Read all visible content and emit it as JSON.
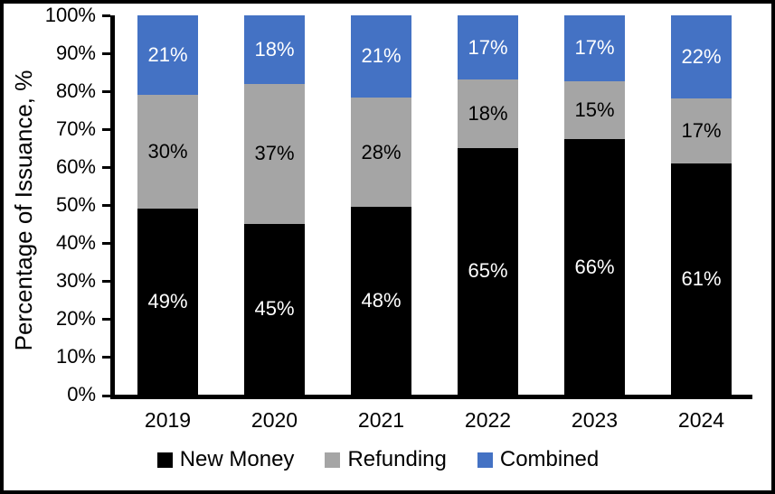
{
  "chart_data": {
    "type": "bar",
    "variant": "stacked-column-100",
    "title": "",
    "ylabel": "Percentage of Issuance, %",
    "xlabel": "",
    "ylim": [
      0,
      100
    ],
    "yticks": [
      "0%",
      "10%",
      "20%",
      "30%",
      "40%",
      "50%",
      "60%",
      "70%",
      "80%",
      "90%",
      "100%"
    ],
    "categories": [
      "2019",
      "2020",
      "2021",
      "2022",
      "2023",
      "2024"
    ],
    "series": [
      {
        "name": "New Money",
        "color": "#000000",
        "label_color": "#FFFFFF",
        "values": [
          49,
          45,
          48,
          65,
          66,
          61
        ]
      },
      {
        "name": "Refunding",
        "color": "#A5A5A5",
        "label_color": "#000000",
        "values": [
          30,
          37,
          28,
          18,
          15,
          17
        ]
      },
      {
        "name": "Combined",
        "color": "#4472C4",
        "label_color": "#FFFFFF",
        "values": [
          21,
          18,
          21,
          17,
          17,
          22
        ]
      }
    ],
    "data_label_suffix": "%",
    "legend_position": "bottom",
    "gridlines": false,
    "axis_color": "#000000",
    "background_color": "#FFFFFF",
    "frame_border_color": "#000000"
  }
}
